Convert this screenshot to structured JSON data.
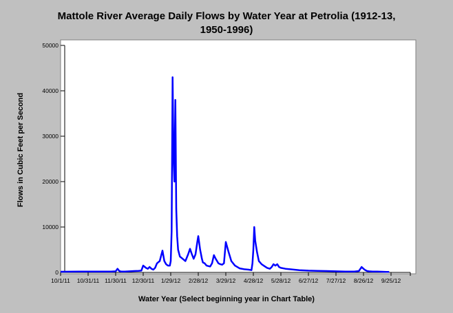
{
  "chart_data": {
    "type": "line",
    "title_line1": "Mattole River Average Daily Flows by Water Year at Petrolia (1912-13,",
    "title_line2": "1950-1996)",
    "xlabel": "Water Year (Select beginning year in Chart Table)",
    "ylabel": "Flows in Cubic Feet per Second",
    "ylim": [
      0,
      50000
    ],
    "y_ticks": [
      0,
      10000,
      20000,
      30000,
      40000,
      50000
    ],
    "x_ticks": [
      "10/1/11",
      "10/31/11",
      "11/30/11",
      "12/30/11",
      "1/29/12",
      "2/28/12",
      "3/29/12",
      "4/28/12",
      "5/28/12",
      "6/27/12",
      "7/27/12",
      "8/26/12",
      "9/25/12"
    ],
    "x_range_days": [
      0,
      381
    ],
    "grid": false,
    "line_color": "#0000ff",
    "series": [
      {
        "x": [
          0,
          20,
          40,
          55,
          60,
          62,
          64,
          66,
          70,
          75,
          80,
          85,
          88,
          90,
          93,
          95,
          97,
          99,
          101,
          103,
          105,
          108,
          111,
          113,
          115,
          117,
          119,
          120,
          121,
          122,
          123,
          124,
          125,
          126,
          127,
          128,
          130,
          133,
          136,
          139,
          141,
          143,
          145,
          147,
          149,
          150,
          152,
          154,
          155,
          157,
          159,
          161,
          163,
          165,
          167,
          169,
          172,
          174,
          176,
          178,
          180,
          183,
          186,
          190,
          195,
          200,
          205,
          208,
          209,
          210,
          211,
          212,
          214,
          216,
          219,
          222,
          225,
          228,
          230,
          232,
          234,
          236,
          238,
          240,
          245,
          250,
          260,
          270,
          280,
          290,
          300,
          310,
          320,
          325,
          328,
          330,
          332,
          334,
          336,
          340,
          345,
          350,
          355,
          358
        ],
        "y": [
          150,
          200,
          200,
          200,
          250,
          800,
          300,
          200,
          200,
          250,
          300,
          350,
          400,
          1500,
          1000,
          800,
          1200,
          800,
          600,
          1000,
          2000,
          2500,
          4800,
          2500,
          1800,
          1500,
          1500,
          2500,
          9000,
          43000,
          26000,
          20000,
          38000,
          14000,
          8000,
          5000,
          3500,
          3000,
          2500,
          4000,
          5200,
          4000,
          3000,
          4000,
          6800,
          8000,
          5000,
          3000,
          2200,
          2000,
          1500,
          1400,
          1300,
          2000,
          3800,
          3000,
          2000,
          1800,
          1700,
          2000,
          6700,
          4500,
          2500,
          1500,
          900,
          700,
          600,
          500,
          2000,
          5000,
          10000,
          7000,
          4500,
          2500,
          1800,
          1400,
          1000,
          800,
          1200,
          1800,
          1500,
          1800,
          1200,
          1000,
          800,
          700,
          500,
          400,
          350,
          300,
          250,
          200,
          180,
          300,
          1200,
          800,
          500,
          300,
          250,
          200,
          180,
          150,
          120,
          100
        ]
      }
    ]
  }
}
